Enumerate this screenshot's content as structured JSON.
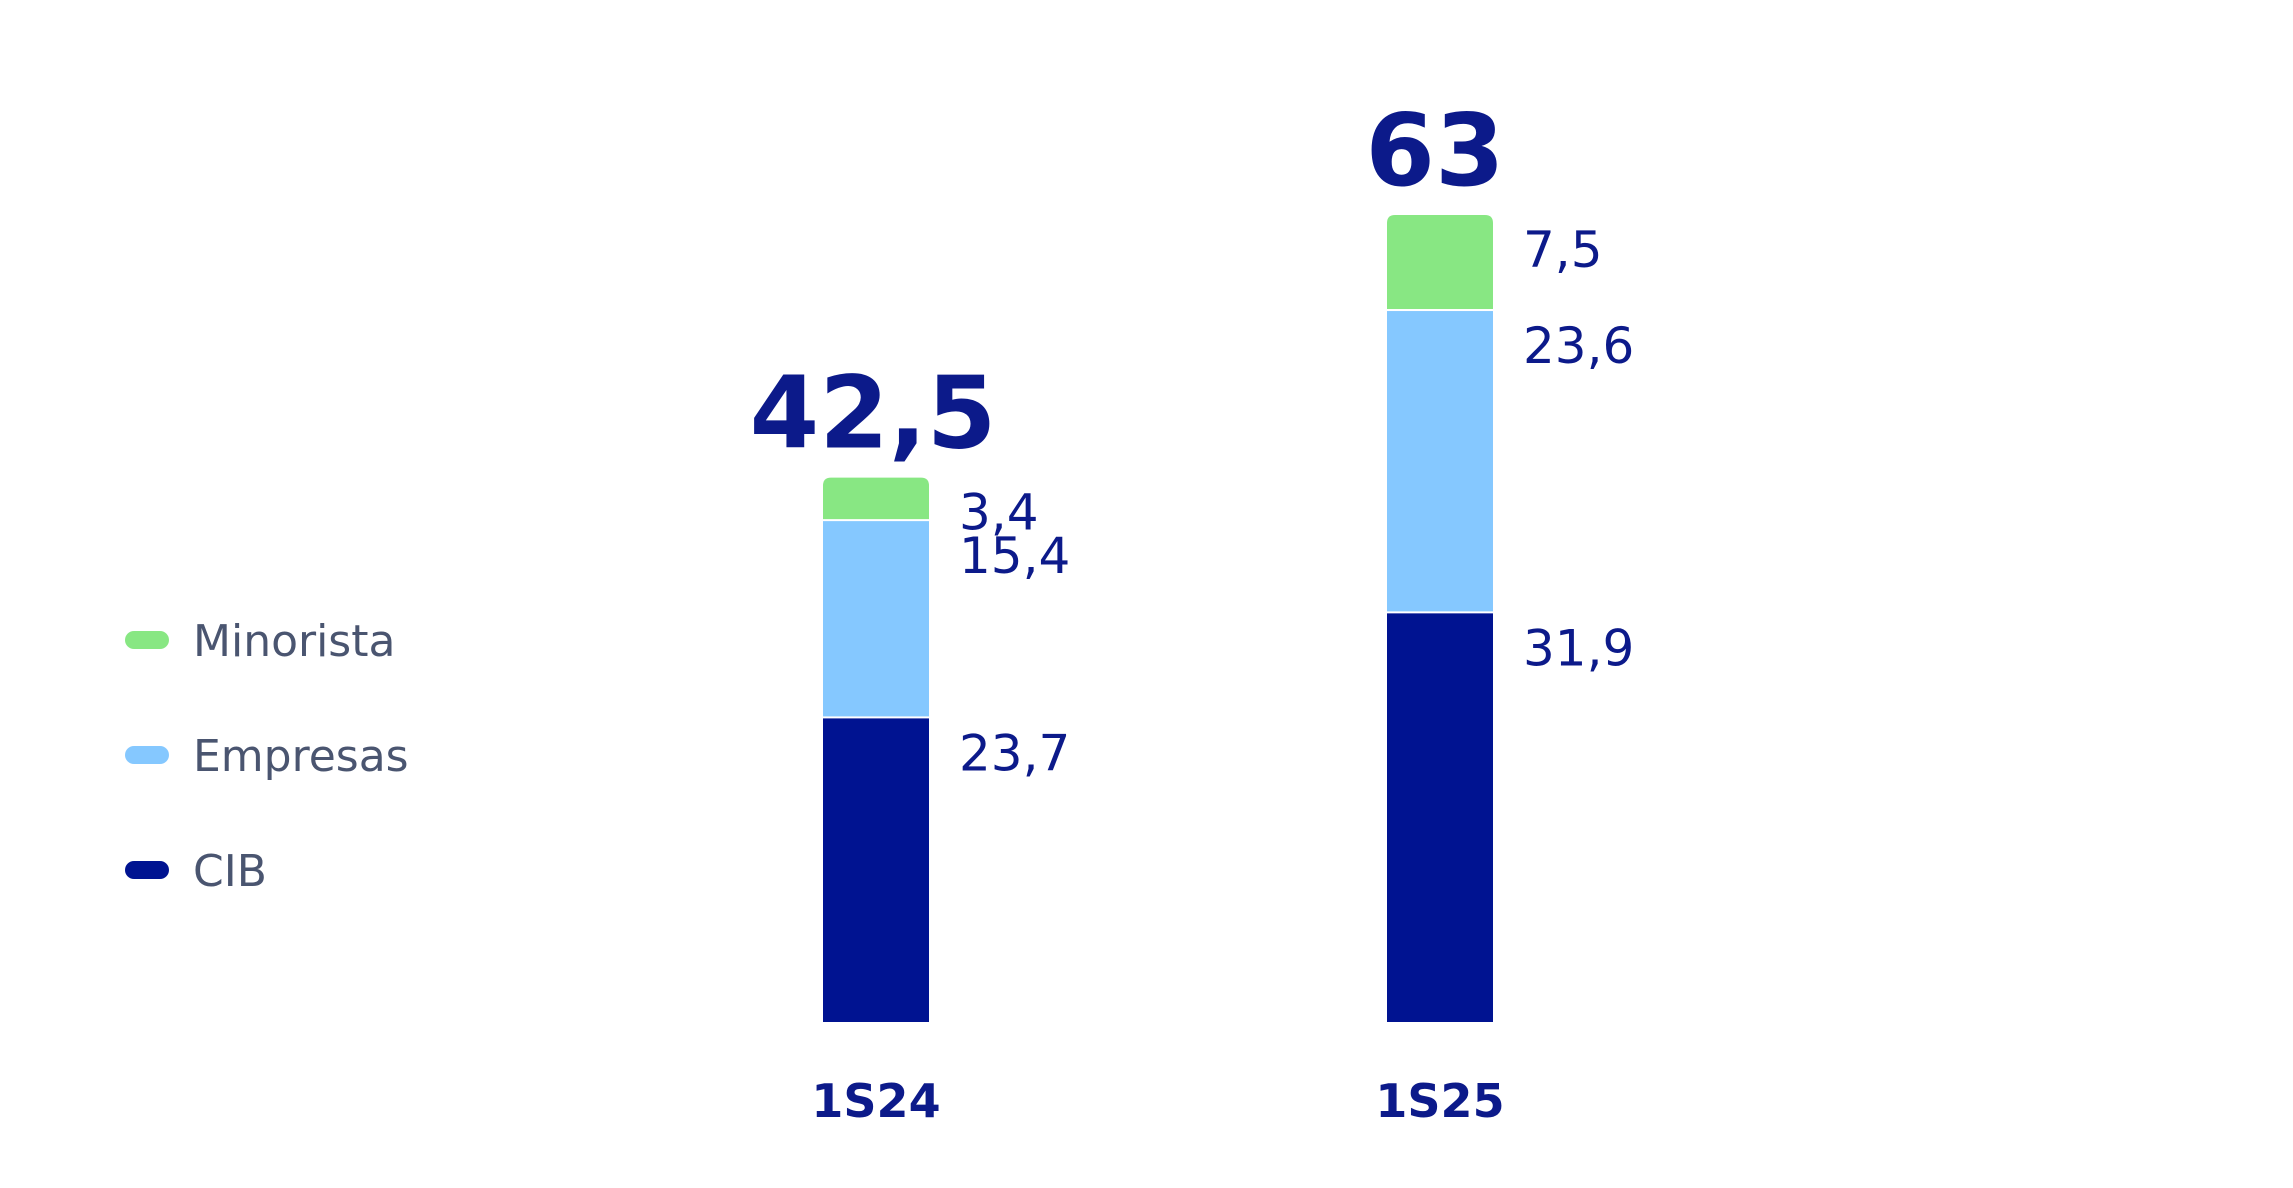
{
  "chart_data": {
    "type": "bar",
    "stacked": true,
    "categories": [
      "1S24",
      "1S25"
    ],
    "totals": [
      "42,5",
      "63"
    ],
    "series": [
      {
        "name": "CIB",
        "color": "#001391",
        "values": [
          23.7,
          31.9
        ],
        "labels": [
          "23,7",
          "31,9"
        ]
      },
      {
        "name": "Empresas",
        "color": "#85c8ff",
        "values": [
          15.4,
          23.6
        ],
        "labels": [
          "15,4",
          "23,6"
        ]
      },
      {
        "name": "Minorista",
        "color": "#88e783",
        "values": [
          3.4,
          7.5
        ],
        "labels": [
          "3,4",
          "7,5"
        ]
      }
    ],
    "legend": {
      "position": "left",
      "items": [
        "Minorista",
        "Empresas",
        "CIB"
      ]
    },
    "grid": false,
    "title": "",
    "xlabel": "",
    "ylabel": ""
  }
}
